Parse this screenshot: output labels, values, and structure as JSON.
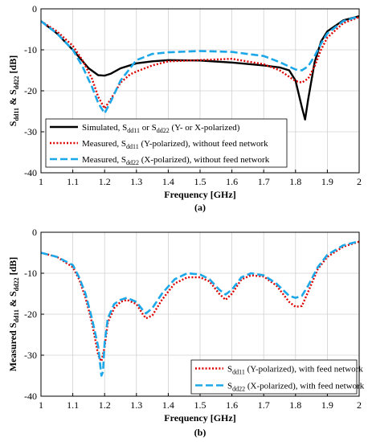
{
  "chart_data": [
    {
      "type": "line",
      "caption": "(a)",
      "xlabel": "Frequency [GHz]",
      "ylabel": {
        "base": "S",
        "sub1": "dd11",
        "mid": " & S",
        "sub2": "dd22",
        "tail": " [dB]"
      },
      "xlim": [
        1,
        2
      ],
      "ylim": [
        -40,
        0
      ],
      "xticks": [
        1,
        1.1,
        1.2,
        1.3,
        1.4,
        1.5,
        1.6,
        1.7,
        1.8,
        1.9,
        2
      ],
      "yticks": [
        0,
        -10,
        -20,
        -30,
        -40
      ],
      "grid": true,
      "legend_position": "bottom-left",
      "series": [
        {
          "name": "Simulated, Sdd11 or Sdd22 (Y- or X-polarized)",
          "legend": {
            "pre": "Simulated,  S",
            "sub": "dd11",
            "post": " or S",
            "sub2": "dd22",
            "post2": " (Y- or X-polarized)"
          },
          "color": "#000000",
          "style": "solid",
          "x": [
            1,
            1.05,
            1.1,
            1.15,
            1.18,
            1.2,
            1.22,
            1.25,
            1.3,
            1.35,
            1.4,
            1.5,
            1.6,
            1.7,
            1.75,
            1.78,
            1.8,
            1.82,
            1.83,
            1.84,
            1.86,
            1.88,
            1.9,
            1.95,
            2
          ],
          "y": [
            -3,
            -6,
            -10,
            -14.5,
            -16.2,
            -16.3,
            -15.8,
            -14.5,
            -13.3,
            -12.8,
            -12.5,
            -12.6,
            -13.1,
            -13.8,
            -14.3,
            -15,
            -17.5,
            -24,
            -27,
            -22,
            -13,
            -8,
            -5.5,
            -2.8,
            -1.8
          ]
        },
        {
          "name": "Measured, Sdd11 (Y-polarized), without feed network",
          "legend": {
            "pre": "Measured,  S",
            "sub": "dd11",
            "post": " (Y-polarized), without feed network"
          },
          "color": "#dd0000",
          "style": "dotted",
          "x": [
            1,
            1.05,
            1.1,
            1.13,
            1.16,
            1.18,
            1.2,
            1.22,
            1.25,
            1.28,
            1.3,
            1.35,
            1.4,
            1.5,
            1.6,
            1.7,
            1.75,
            1.8,
            1.82,
            1.84,
            1.86,
            1.88,
            1.9,
            1.95,
            2
          ],
          "y": [
            -3,
            -5.5,
            -9,
            -12.5,
            -17,
            -21.5,
            -24.3,
            -22,
            -18,
            -16,
            -15.3,
            -13.8,
            -12.8,
            -12.5,
            -12.2,
            -13.5,
            -15,
            -17.6,
            -18,
            -17,
            -14,
            -10,
            -7,
            -3.5,
            -2
          ]
        },
        {
          "name": "Measured, Sdd22 (X-polarized), without feed network",
          "legend": {
            "pre": "Measured,  S",
            "sub": "dd22",
            "post": " (X-polarized), without feed network"
          },
          "color": "#1ca8e8",
          "style": "dashed",
          "x": [
            1,
            1.05,
            1.1,
            1.13,
            1.16,
            1.18,
            1.2,
            1.22,
            1.25,
            1.28,
            1.3,
            1.35,
            1.4,
            1.5,
            1.6,
            1.7,
            1.75,
            1.8,
            1.82,
            1.84,
            1.86,
            1.88,
            1.9,
            1.95,
            2
          ],
          "y": [
            -3,
            -6,
            -10,
            -14,
            -19,
            -23,
            -25.5,
            -22.5,
            -17.5,
            -14.5,
            -12.5,
            -11,
            -10.6,
            -10.3,
            -10.5,
            -11.5,
            -13,
            -14.8,
            -15,
            -14,
            -11.5,
            -8.5,
            -6,
            -3,
            -1.8
          ]
        }
      ]
    },
    {
      "type": "line",
      "caption": "(b)",
      "xlabel": "Frequency [GHz]",
      "ylabel": {
        "base": "Measured S",
        "sub1": "dd11",
        "mid": " & S",
        "sub2": "dd22",
        "tail": " [dB]"
      },
      "xlim": [
        1,
        2
      ],
      "ylim": [
        -40,
        0
      ],
      "xticks": [
        1,
        1.1,
        1.2,
        1.3,
        1.4,
        1.5,
        1.6,
        1.7,
        1.8,
        1.9,
        2
      ],
      "yticks": [
        0,
        -10,
        -20,
        -30,
        -40
      ],
      "grid": true,
      "legend_position": "bottom-right",
      "series": [
        {
          "name": "Sdd11 (Y-polarized), with feed network",
          "legend": {
            "pre": "S",
            "sub": "dd11",
            "post": " (Y-polarized), with feed network"
          },
          "color": "#dd0000",
          "style": "dotted",
          "x": [
            1,
            1.05,
            1.1,
            1.12,
            1.14,
            1.16,
            1.18,
            1.19,
            1.2,
            1.21,
            1.23,
            1.25,
            1.27,
            1.3,
            1.32,
            1.33,
            1.35,
            1.38,
            1.42,
            1.46,
            1.5,
            1.53,
            1.56,
            1.58,
            1.6,
            1.63,
            1.66,
            1.7,
            1.74,
            1.78,
            1.8,
            1.82,
            1.84,
            1.87,
            1.9,
            1.95,
            2
          ],
          "y": [
            -5,
            -6,
            -8.5,
            -11.5,
            -16,
            -22,
            -30,
            -31.5,
            -28,
            -22,
            -18.5,
            -17,
            -16.5,
            -17.5,
            -20,
            -21,
            -20.3,
            -16.5,
            -12.5,
            -11,
            -11,
            -12,
            -15,
            -16.5,
            -15,
            -11.5,
            -10.5,
            -10.8,
            -13,
            -17,
            -18.2,
            -18,
            -14.5,
            -9,
            -6,
            -3.5,
            -2.3
          ]
        },
        {
          "name": "Sdd22 (X-polarized), with feed network",
          "legend": {
            "pre": "S",
            "sub": "dd22",
            "post": " (X-polarized), with feed network"
          },
          "color": "#1ca8e8",
          "style": "dashed",
          "x": [
            1,
            1.05,
            1.1,
            1.12,
            1.14,
            1.16,
            1.18,
            1.19,
            1.195,
            1.2,
            1.21,
            1.23,
            1.25,
            1.27,
            1.3,
            1.32,
            1.33,
            1.35,
            1.38,
            1.42,
            1.46,
            1.5,
            1.53,
            1.56,
            1.58,
            1.6,
            1.63,
            1.66,
            1.7,
            1.74,
            1.78,
            1.8,
            1.82,
            1.84,
            1.87,
            1.9,
            1.95,
            2
          ],
          "y": [
            -5,
            -6,
            -8,
            -11,
            -15,
            -21,
            -28,
            -35,
            -34,
            -27,
            -21,
            -17.5,
            -16.5,
            -16,
            -17,
            -19,
            -19.8,
            -18.5,
            -15,
            -11.5,
            -10,
            -10.3,
            -11.5,
            -14,
            -15.2,
            -14,
            -11,
            -10,
            -10.5,
            -12.5,
            -15.5,
            -16,
            -15.5,
            -13,
            -8.5,
            -5.5,
            -3.2,
            -2.2
          ]
        }
      ]
    }
  ]
}
